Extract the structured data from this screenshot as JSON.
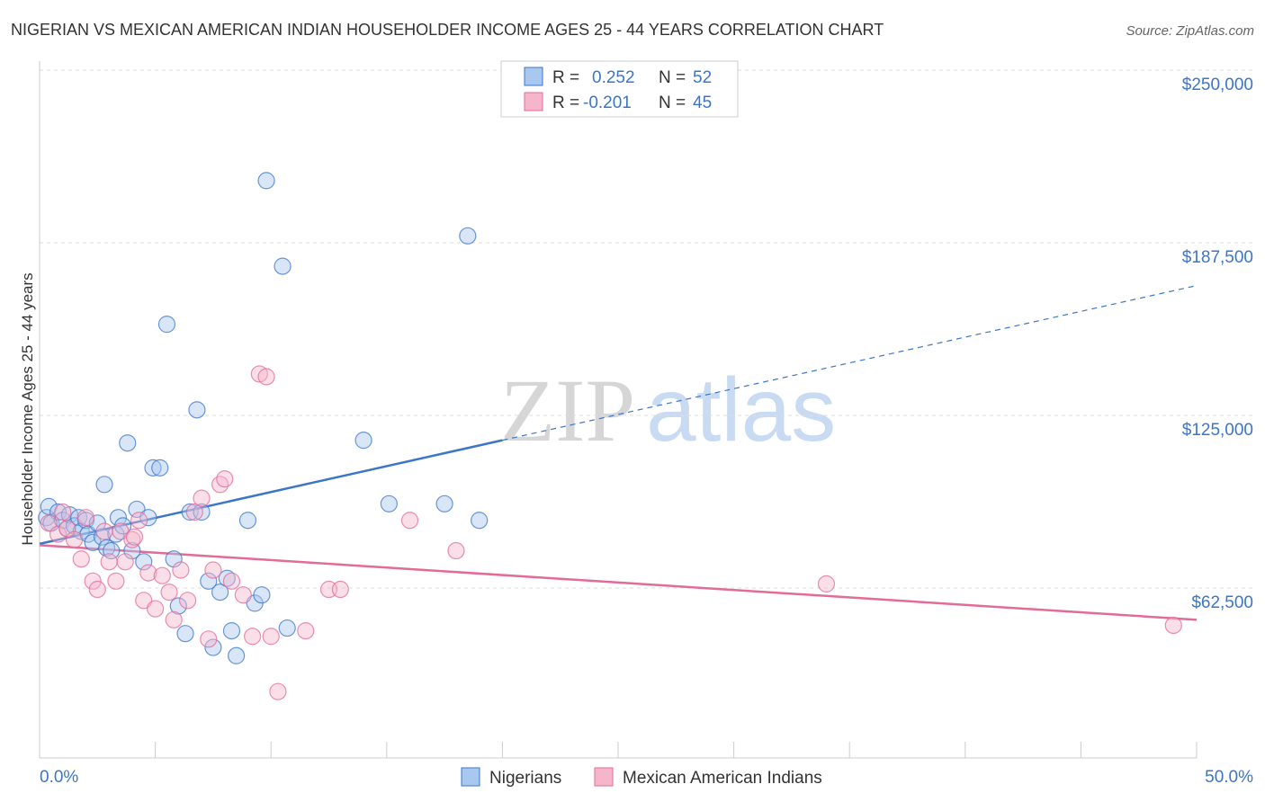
{
  "chart_data": {
    "type": "scatter",
    "title": "NIGERIAN VS MEXICAN AMERICAN INDIAN HOUSEHOLDER INCOME AGES 25 - 44 YEARS CORRELATION CHART",
    "source": "Source: ZipAtlas.com",
    "ylabel": "Householder Income Ages 25 - 44 years",
    "xlabel": "",
    "xlim": [
      0,
      50
    ],
    "ylim": [
      0,
      260000
    ],
    "x_tick_labels": [
      {
        "value": 0,
        "label": "0.0%"
      },
      {
        "value": 50,
        "label": "50.0%"
      }
    ],
    "y_tick_labels": [
      {
        "value": 62500,
        "label": "$62,500"
      },
      {
        "value": 125000,
        "label": "$125,000"
      },
      {
        "value": 187500,
        "label": "$187,500"
      },
      {
        "value": 250000,
        "label": "$250,000"
      }
    ],
    "grid": true,
    "legend_position": "top-center",
    "watermark": {
      "zip": "ZIP",
      "atlas": "atlas"
    },
    "stats_box": [
      {
        "r_label": "R =",
        "r": "0.252",
        "n_label": "N =",
        "n": "52"
      },
      {
        "r_label": "R =",
        "r": "-0.201",
        "n_label": "N =",
        "n": "45"
      }
    ],
    "series": [
      {
        "name": "Nigerians",
        "color": "#3b76c9",
        "fill": "#a9c8f0",
        "trend": {
          "x0": 0,
          "y0": 78500,
          "x1": 20,
          "y1": 116000,
          "dash_x1": 50,
          "dash_y1": 172000
        },
        "points": [
          [
            0.3,
            88000
          ],
          [
            0.4,
            92000
          ],
          [
            0.5,
            86000
          ],
          [
            0.8,
            90000
          ],
          [
            1.0,
            87000
          ],
          [
            1.2,
            84000
          ],
          [
            1.3,
            89000
          ],
          [
            1.5,
            85000
          ],
          [
            1.7,
            88000
          ],
          [
            1.8,
            83000
          ],
          [
            2.0,
            87000
          ],
          [
            2.1,
            82000
          ],
          [
            2.3,
            79000
          ],
          [
            2.5,
            86000
          ],
          [
            2.7,
            81000
          ],
          [
            2.9,
            77000
          ],
          [
            3.1,
            76000
          ],
          [
            3.3,
            82000
          ],
          [
            3.4,
            88000
          ],
          [
            3.6,
            85000
          ],
          [
            2.8,
            100000
          ],
          [
            3.8,
            115000
          ],
          [
            4.0,
            76000
          ],
          [
            4.2,
            91000
          ],
          [
            4.5,
            72000
          ],
          [
            4.7,
            88000
          ],
          [
            4.9,
            106000
          ],
          [
            5.2,
            106000
          ],
          [
            5.5,
            158000
          ],
          [
            5.8,
            73000
          ],
          [
            6.0,
            56000
          ],
          [
            6.3,
            46000
          ],
          [
            6.5,
            90000
          ],
          [
            6.8,
            127000
          ],
          [
            7.0,
            90000
          ],
          [
            7.3,
            65000
          ],
          [
            7.5,
            41000
          ],
          [
            7.8,
            61000
          ],
          [
            8.1,
            66000
          ],
          [
            8.3,
            47000
          ],
          [
            8.5,
            38000
          ],
          [
            9.0,
            87000
          ],
          [
            9.3,
            57000
          ],
          [
            9.6,
            60000
          ],
          [
            9.8,
            210000
          ],
          [
            10.5,
            179000
          ],
          [
            10.7,
            48000
          ],
          [
            14.0,
            116000
          ],
          [
            15.1,
            93000
          ],
          [
            17.5,
            93000
          ],
          [
            18.5,
            190000
          ],
          [
            19.0,
            87000
          ]
        ]
      },
      {
        "name": "Mexican American Indians",
        "color": "#e36b98",
        "fill": "#f5b6cb",
        "trend": {
          "x0": 0,
          "y0": 78000,
          "x1": 50,
          "y1": 51000
        },
        "points": [
          [
            0.4,
            86000
          ],
          [
            0.8,
            82000
          ],
          [
            1.0,
            90000
          ],
          [
            1.2,
            84000
          ],
          [
            1.5,
            80000
          ],
          [
            1.8,
            73000
          ],
          [
            2.0,
            88000
          ],
          [
            2.3,
            65000
          ],
          [
            2.5,
            62000
          ],
          [
            2.8,
            83000
          ],
          [
            3.0,
            72000
          ],
          [
            3.3,
            65000
          ],
          [
            3.5,
            83000
          ],
          [
            3.7,
            72000
          ],
          [
            4.0,
            80000
          ],
          [
            4.1,
            81000
          ],
          [
            4.3,
            87000
          ],
          [
            4.5,
            58000
          ],
          [
            4.7,
            68000
          ],
          [
            5.0,
            55000
          ],
          [
            5.3,
            67000
          ],
          [
            5.6,
            61000
          ],
          [
            5.8,
            51000
          ],
          [
            6.1,
            69000
          ],
          [
            6.4,
            58000
          ],
          [
            6.7,
            90000
          ],
          [
            7.0,
            95000
          ],
          [
            7.3,
            44000
          ],
          [
            7.5,
            69000
          ],
          [
            7.8,
            100000
          ],
          [
            8.0,
            102000
          ],
          [
            8.3,
            65000
          ],
          [
            8.8,
            60000
          ],
          [
            9.2,
            45000
          ],
          [
            9.5,
            140000
          ],
          [
            9.8,
            139000
          ],
          [
            10.0,
            45000
          ],
          [
            10.3,
            25000
          ],
          [
            11.5,
            47000
          ],
          [
            12.5,
            62000
          ],
          [
            13.0,
            62000
          ],
          [
            16.0,
            87000
          ],
          [
            18.0,
            76000
          ],
          [
            34.0,
            64000
          ],
          [
            49.0,
            49000
          ]
        ]
      }
    ]
  }
}
